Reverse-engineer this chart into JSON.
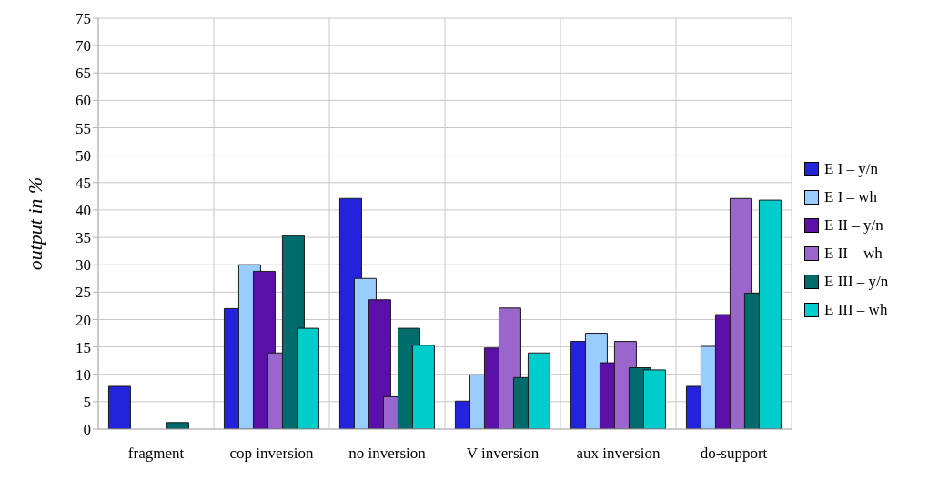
{
  "chart_data": {
    "type": "bar",
    "ylabel": "output in %",
    "categories": [
      "fragment",
      "cop inversion",
      "no inversion",
      "V inversion",
      "aux inversion",
      "do-support"
    ],
    "series": [
      {
        "name": "E I – y/n",
        "color": "#2323dc",
        "values": [
          7.8,
          22,
          42.1,
          5.1,
          16,
          7.8
        ]
      },
      {
        "name": "E I – wh",
        "color": "#99ccff",
        "values": [
          0,
          30,
          27.5,
          9.9,
          17.5,
          15.1
        ]
      },
      {
        "name": "E II – y/n",
        "color": "#5b10a8",
        "values": [
          0,
          28.8,
          23.6,
          14.8,
          12.1,
          20.9
        ]
      },
      {
        "name": "E II – wh",
        "color": "#9966cc",
        "values": [
          0,
          13.9,
          5.9,
          22.1,
          16,
          42.1
        ]
      },
      {
        "name": "E III – y/n",
        "color": "#006b6b",
        "values": [
          1.2,
          35.3,
          18.4,
          9.4,
          11.2,
          24.8
        ]
      },
      {
        "name": "E III – wh",
        "color": "#00cccc",
        "values": [
          0,
          18.4,
          15.3,
          13.9,
          10.8,
          41.8
        ]
      }
    ],
    "ylim": [
      0,
      75
    ],
    "yticks": [
      0,
      5,
      10,
      15,
      20,
      25,
      30,
      35,
      40,
      45,
      50,
      55,
      60,
      65,
      70,
      75
    ],
    "grid": true,
    "legend": "right"
  }
}
